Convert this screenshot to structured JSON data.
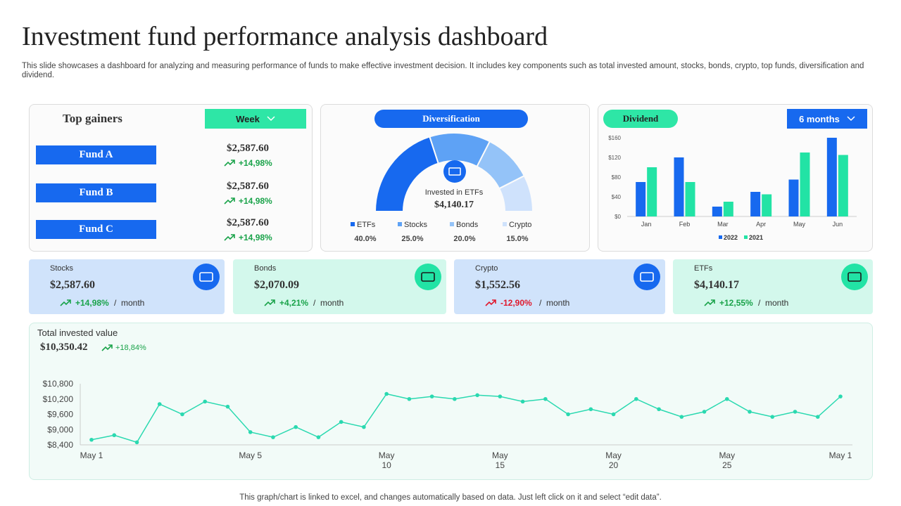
{
  "header": {
    "title": "Investment fund performance analysis dashboard",
    "subtitle": "This slide showcases a dashboard for analyzing and measuring performance of funds to make effective investment decision. It includes key components such as total invested amount, stocks, bonds, crypto, top funds, diversification and dividend."
  },
  "top_gainers": {
    "title": "Top gainers",
    "period": "Week",
    "change_color": "#1aa34a",
    "funds": [
      {
        "name": "Fund A",
        "value": "$2,587.60",
        "change": "+14,98%"
      },
      {
        "name": "Fund B",
        "value": "$2,587.60",
        "change": "+14,98%"
      },
      {
        "name": "Fund C",
        "value": "$2,587.60",
        "change": "+14,98%"
      }
    ]
  },
  "cards": [
    {
      "name": "Stocks",
      "value": "$2,587.60",
      "change": "+14,98%",
      "period": "/  month",
      "change_color": "#1aa34a",
      "background": "#d0e3fb",
      "icon_color": "#1769ef"
    },
    {
      "name": "Bonds",
      "value": "$2,070.09",
      "change": "+4,21%",
      "period": "/  month",
      "change_color": "#1aa34a",
      "background": "#d3f8ec",
      "icon_color": "#22e3a5"
    },
    {
      "name": "Crypto",
      "value": "$1,552.56",
      "change": "-12,90%",
      "period": "/  month",
      "change_color": "#e0182c",
      "background": "#d0e3fb",
      "icon_color": "#1769ef"
    },
    {
      "name": "ETFs",
      "value": "$4,140.17",
      "change": "+12,55%",
      "period": "/  month",
      "change_color": "#1aa34a",
      "background": "#d3f8ec",
      "icon_color": "#22e3a5"
    }
  ],
  "chart_data": [
    {
      "type": "pie",
      "half": true,
      "title": "Diversification",
      "center_label": "Invested in ETFs",
      "center_value": "$4,140.17",
      "categories": [
        "ETFs",
        "Stocks",
        "Bonds",
        "Crypto"
      ],
      "values": [
        40,
        25,
        20,
        15
      ],
      "value_labels": [
        "40.0%",
        "25.0%",
        "20.0%",
        "15.0%"
      ],
      "colors": [
        "#1769ef",
        "#5ea2f5",
        "#94c3f8",
        "#cfe2fc"
      ]
    },
    {
      "type": "bar",
      "title": "Dividend",
      "period": "6 months",
      "categories": [
        "Jan",
        "Feb",
        "Mar",
        "Apr",
        "May",
        "Jun"
      ],
      "series": [
        {
          "name": "2022",
          "color": "#1769ef",
          "values": [
            70,
            120,
            20,
            50,
            75,
            160
          ]
        },
        {
          "name": "2021",
          "color": "#22e3a5",
          "values": [
            100,
            70,
            30,
            45,
            130,
            125
          ]
        }
      ],
      "ylim": [
        0,
        160
      ],
      "yticks": [
        {
          "value": 0,
          "label": "$0"
        },
        {
          "value": 40,
          "label": "$40"
        },
        {
          "value": 80,
          "label": "$80"
        },
        {
          "value": 120,
          "label": "$120"
        },
        {
          "value": 160,
          "label": "$160"
        }
      ]
    },
    {
      "type": "line",
      "title": "Total invested value",
      "total": "$10,350.42",
      "change": "+18,84%",
      "change_color": "#1aa34a",
      "color": "#2ad9b0",
      "categories": [
        "May 1",
        null,
        null,
        null,
        null,
        null,
        null,
        "May 5",
        null,
        null,
        null,
        null,
        null,
        "May 10",
        null,
        null,
        null,
        null,
        "May 15",
        null,
        null,
        null,
        null,
        "May 20",
        null,
        null,
        null,
        null,
        "May 25",
        null,
        null,
        null,
        null,
        "May 1"
      ],
      "values": [
        8600,
        8780,
        8500,
        10000,
        9600,
        10100,
        9900,
        8900,
        8700,
        9100,
        8700,
        9300,
        9100,
        10400,
        10200,
        10300,
        10200,
        10350,
        10300,
        10100,
        10200,
        9600,
        9800,
        9600,
        10200,
        9800,
        9500,
        9700,
        10200,
        9700,
        9500,
        9700,
        9500,
        10300
      ],
      "ylim": [
        8400,
        10800
      ],
      "yticks": [
        {
          "value": 8400,
          "label": "$8,400"
        },
        {
          "value": 9000,
          "label": "$9,000"
        },
        {
          "value": 9600,
          "label": "$9,600"
        },
        {
          "value": 10200,
          "label": "$10,200"
        },
        {
          "value": 10800,
          "label": "$10,800"
        }
      ]
    }
  ],
  "footer": "This graph/chart is linked to excel, and changes automatically based on data. Just left click on it and select “edit data”."
}
